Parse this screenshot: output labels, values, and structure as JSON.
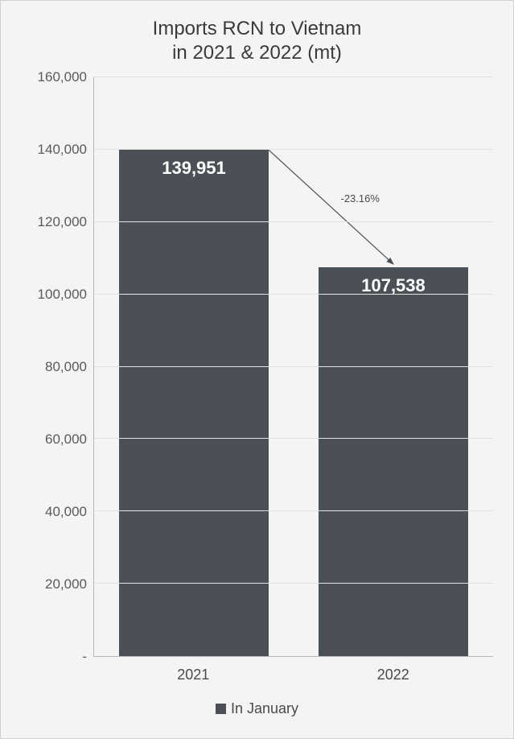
{
  "chart": {
    "type": "bar",
    "title_line1": "Imports RCN to Vietnam",
    "title_line2": "in 2021 & 2022 (mt)",
    "title_fontsize": 24,
    "title_color": "#3a3a3a",
    "background_color": "#f4f4f4",
    "border_color": "#d0d0d0",
    "categories": [
      "2021",
      "2022"
    ],
    "values": [
      139951,
      107538
    ],
    "value_labels": [
      "139,951",
      "107,538"
    ],
    "bar_color": "#4b5057",
    "bar_label_color": "#ffffff",
    "bar_label_fontsize": 22,
    "bar_width_pct": 75,
    "ylim": [
      0,
      160000
    ],
    "ytick_step": 20000,
    "ytick_labels": [
      "-",
      "20,000",
      "40,000",
      "60,000",
      "80,000",
      "100,000",
      "120,000",
      "140,000",
      "160,000"
    ],
    "ytick_fontsize": 17,
    "xtick_fontsize": 18,
    "axis_label_color": "#5a5a5a",
    "grid_color": "#e2e2e2",
    "axis_line_color": "#b8b8b8",
    "legend": {
      "label": "In January",
      "swatch_color": "#4b5057",
      "fontsize": 18
    },
    "delta_annotation": {
      "text": "-23.16%",
      "fontsize": 13,
      "color": "#4a4a4a",
      "arrow_color": "#4b5057",
      "from_category_index": 0,
      "to_category_index": 1
    }
  }
}
